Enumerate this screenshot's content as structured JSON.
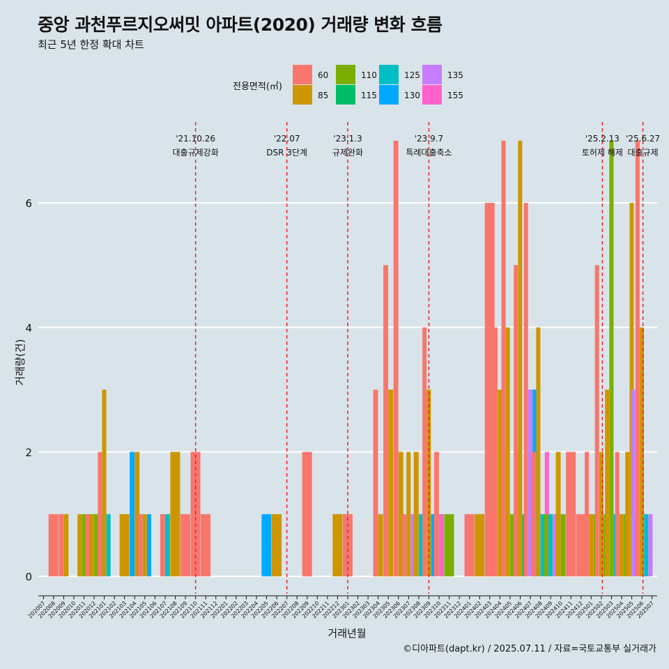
{
  "header": {
    "title": "중앙 과천푸르지오써밋 아파트(2020) 거래량 변화 흐름",
    "subtitle": "최근 5년 한정 확대 차트"
  },
  "caption": "©디아파트(dapt.kr) / 2025.07.11 / 자료=국토교통부 실거래가",
  "chart_data": {
    "type": "bar",
    "xlabel": "거래년월",
    "ylabel": "거래량(건)",
    "ylim": [
      -0.2,
      7.3
    ],
    "yticks": [
      0,
      2,
      4,
      6
    ],
    "legend": {
      "title": "전용면적(㎡)",
      "position": "top"
    },
    "series": [
      {
        "name": "60",
        "color": "#F8766D"
      },
      {
        "name": "85",
        "color": "#CD9600"
      },
      {
        "name": "110",
        "color": "#7CAE00"
      },
      {
        "name": "115",
        "color": "#00BE67"
      },
      {
        "name": "125",
        "color": "#00BFC4"
      },
      {
        "name": "130",
        "color": "#00A9FF"
      },
      {
        "name": "135",
        "color": "#C77CFF"
      },
      {
        "name": "155",
        "color": "#FF61CC"
      }
    ],
    "categories": [
      "202007",
      "202008",
      "202009",
      "202010",
      "202011",
      "202012",
      "202101",
      "202102",
      "202103",
      "202104",
      "202105",
      "202106",
      "202107",
      "202108",
      "202109",
      "202110",
      "202111",
      "202112",
      "202201",
      "202202",
      "202203",
      "202204",
      "202205",
      "202206",
      "202207",
      "202208",
      "202209",
      "202210",
      "202211",
      "202212",
      "202301",
      "202302",
      "202303",
      "202304",
      "202305",
      "202306",
      "202307",
      "202308",
      "202309",
      "202310",
      "202311",
      "202312",
      "202401",
      "202402",
      "202403",
      "202404",
      "202405",
      "202406",
      "202407",
      "202408",
      "202409",
      "202410",
      "202411",
      "202412",
      "202501",
      "202502",
      "202503",
      "202504",
      "202505",
      "202506",
      "202507"
    ],
    "months": [
      {
        "month": "202008",
        "bars": [
          {
            "s": "60",
            "v": 1
          }
        ]
      },
      {
        "month": "202009",
        "bars": [
          {
            "s": "60",
            "v": 1
          },
          {
            "s": "85",
            "v": 1
          }
        ]
      },
      {
        "month": "202011",
        "bars": [
          {
            "s": "85",
            "v": 1
          },
          {
            "s": "110",
            "v": 1
          },
          {
            "s": "125",
            "v": 1
          }
        ]
      },
      {
        "month": "202012",
        "bars": [
          {
            "s": "60",
            "v": 1
          },
          {
            "s": "85",
            "v": 1
          },
          {
            "s": "110",
            "v": 1
          },
          {
            "s": "135",
            "v": 1
          }
        ]
      },
      {
        "month": "202101",
        "bars": [
          {
            "s": "60",
            "v": 2
          },
          {
            "s": "85",
            "v": 3
          },
          {
            "s": "125",
            "v": 1
          }
        ]
      },
      {
        "month": "202103",
        "bars": [
          {
            "s": "85",
            "v": 1
          }
        ]
      },
      {
        "month": "202104",
        "bars": [
          {
            "s": "130",
            "v": 2
          },
          {
            "s": "85",
            "v": 2
          }
        ]
      },
      {
        "month": "202105",
        "bars": [
          {
            "s": "60",
            "v": 1
          },
          {
            "s": "85",
            "v": 1
          },
          {
            "s": "130",
            "v": 1
          }
        ]
      },
      {
        "month": "202107",
        "bars": [
          {
            "s": "60",
            "v": 1
          },
          {
            "s": "125",
            "v": 1
          }
        ]
      },
      {
        "month": "202108",
        "bars": [
          {
            "s": "85",
            "v": 2
          }
        ]
      },
      {
        "month": "202109",
        "bars": [
          {
            "s": "60",
            "v": 1
          }
        ]
      },
      {
        "month": "202110",
        "bars": [
          {
            "s": "60",
            "v": 2
          }
        ]
      },
      {
        "month": "202111",
        "bars": [
          {
            "s": "60",
            "v": 1
          }
        ]
      },
      {
        "month": "202205",
        "bars": [
          {
            "s": "130",
            "v": 1
          }
        ]
      },
      {
        "month": "202206",
        "bars": [
          {
            "s": "85",
            "v": 1
          }
        ]
      },
      {
        "month": "202209",
        "bars": [
          {
            "s": "60",
            "v": 2
          }
        ]
      },
      {
        "month": "202212",
        "bars": [
          {
            "s": "85",
            "v": 1
          }
        ]
      },
      {
        "month": "202301",
        "bars": [
          {
            "s": "60",
            "v": 1
          }
        ]
      },
      {
        "month": "202304",
        "bars": [
          {
            "s": "60",
            "v": 3
          },
          {
            "s": "85",
            "v": 1
          }
        ]
      },
      {
        "month": "202305",
        "bars": [
          {
            "s": "60",
            "v": 5
          },
          {
            "s": "85",
            "v": 3
          }
        ]
      },
      {
        "month": "202306",
        "bars": [
          {
            "s": "60",
            "v": 7
          },
          {
            "s": "85",
            "v": 2
          }
        ]
      },
      {
        "month": "202307",
        "bars": [
          {
            "s": "60",
            "v": 1
          },
          {
            "s": "85",
            "v": 2
          },
          {
            "s": "135",
            "v": 1
          }
        ]
      },
      {
        "month": "202308",
        "bars": [
          {
            "s": "85",
            "v": 2
          },
          {
            "s": "125",
            "v": 1
          }
        ]
      },
      {
        "month": "202309",
        "bars": [
          {
            "s": "60",
            "v": 4
          },
          {
            "s": "85",
            "v": 3
          },
          {
            "s": "130",
            "v": 1
          }
        ]
      },
      {
        "month": "202310",
        "bars": [
          {
            "s": "60",
            "v": 2
          },
          {
            "s": "155",
            "v": 1
          }
        ]
      },
      {
        "month": "202311",
        "bars": [
          {
            "s": "110",
            "v": 1
          }
        ]
      },
      {
        "month": "202401",
        "bars": [
          {
            "s": "60",
            "v": 1
          }
        ]
      },
      {
        "month": "202402",
        "bars": [
          {
            "s": "85",
            "v": 1
          }
        ]
      },
      {
        "month": "202403",
        "bars": [
          {
            "s": "60",
            "v": 6
          }
        ]
      },
      {
        "month": "202404",
        "bars": [
          {
            "s": "60",
            "v": 4
          },
          {
            "s": "85",
            "v": 3
          },
          {
            "s": "135",
            "v": 2
          }
        ]
      },
      {
        "month": "202405",
        "bars": [
          {
            "s": "60",
            "v": 7
          },
          {
            "s": "85",
            "v": 4
          },
          {
            "s": "110",
            "v": 1
          },
          {
            "s": "155",
            "v": 2
          }
        ]
      },
      {
        "month": "202406",
        "bars": [
          {
            "s": "60",
            "v": 5
          },
          {
            "s": "85",
            "v": 7
          },
          {
            "s": "115",
            "v": 1
          }
        ]
      },
      {
        "month": "202407",
        "bars": [
          {
            "s": "60",
            "v": 6
          },
          {
            "s": "135",
            "v": 3
          },
          {
            "s": "130",
            "v": 3
          }
        ]
      },
      {
        "month": "202408",
        "bars": [
          {
            "s": "60",
            "v": 2
          },
          {
            "s": "85",
            "v": 4
          },
          {
            "s": "125",
            "v": 1
          },
          {
            "s": "155",
            "v": 2
          }
        ]
      },
      {
        "month": "202409",
        "bars": [
          {
            "s": "110",
            "v": 1
          },
          {
            "s": "125",
            "v": 1
          },
          {
            "s": "135",
            "v": 1
          }
        ]
      },
      {
        "month": "202410",
        "bars": [
          {
            "s": "85",
            "v": 2
          },
          {
            "s": "110",
            "v": 1
          }
        ]
      },
      {
        "month": "202411",
        "bars": [
          {
            "s": "60",
            "v": 2
          }
        ]
      },
      {
        "month": "202412",
        "bars": [
          {
            "s": "60",
            "v": 1
          }
        ]
      },
      {
        "month": "202501",
        "bars": [
          {
            "s": "60",
            "v": 2
          },
          {
            "s": "85",
            "v": 1
          },
          {
            "s": "110",
            "v": 1
          }
        ]
      },
      {
        "month": "202502",
        "bars": [
          {
            "s": "60",
            "v": 5
          },
          {
            "s": "85",
            "v": 2
          },
          {
            "s": "110",
            "v": 1
          }
        ]
      },
      {
        "month": "202503",
        "bars": [
          {
            "s": "85",
            "v": 3
          },
          {
            "s": "110",
            "v": 7
          },
          {
            "s": "125",
            "v": 1
          }
        ]
      },
      {
        "month": "202504",
        "bars": [
          {
            "s": "60",
            "v": 2
          },
          {
            "s": "85",
            "v": 1
          },
          {
            "s": "110",
            "v": 1
          }
        ]
      },
      {
        "month": "202505",
        "bars": [
          {
            "s": "85",
            "v": 2
          },
          {
            "s": "85",
            "v": 6
          },
          {
            "s": "125",
            "v": 1
          }
        ]
      },
      {
        "month": "202506",
        "bars": [
          {
            "s": "135",
            "v": 3
          },
          {
            "s": "60",
            "v": 7
          },
          {
            "s": "85",
            "v": 4
          },
          {
            "s": "125",
            "v": 1
          },
          {
            "s": "135",
            "v": 1
          }
        ]
      }
    ],
    "events": [
      {
        "month": "202110",
        "offset": 0,
        "date": "'21.10.26",
        "label": "대출규제강화"
      },
      {
        "month": "202207",
        "offset": 0,
        "date": "'22.07",
        "label": "DSR 3단계"
      },
      {
        "month": "202301",
        "offset": 0,
        "date": "'23.1.3",
        "label": "규제완화"
      },
      {
        "month": "202309",
        "offset": 0,
        "date": "'23.9.7",
        "label": "특례대출축소"
      },
      {
        "month": "202502",
        "offset": 0.1,
        "date": "'25.2.13",
        "label": "토허제 해제"
      },
      {
        "month": "202506",
        "offset": 0.1,
        "date": "'25.6.27",
        "label": "대출규제"
      }
    ]
  }
}
